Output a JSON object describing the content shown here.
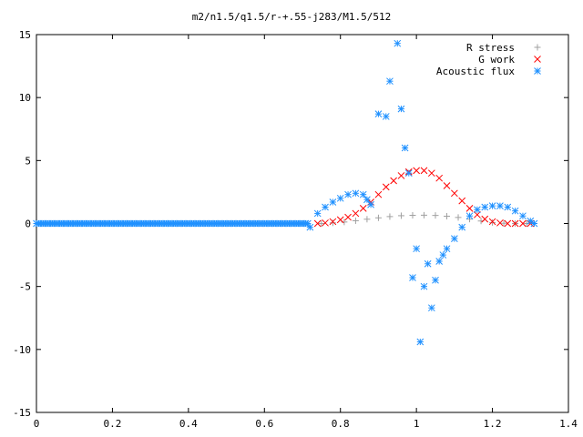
{
  "chart_data": {
    "type": "scatter",
    "title": "m2/n1.5/q1.5/r-+.55-j283/M1.5/512",
    "xlabel": "",
    "ylabel": "",
    "xlim": [
      0,
      1.4
    ],
    "ylim": [
      -15,
      15
    ],
    "x_ticks": [
      "0",
      "0.2",
      "0.4",
      "0.6",
      "0.8",
      "1",
      "1.2",
      "1.4"
    ],
    "y_ticks": [
      "15",
      "10",
      "5",
      "0",
      "-5",
      "-10",
      "-15"
    ],
    "grid": false,
    "legend_position": "top-right",
    "series": [
      {
        "name": "R stress",
        "marker": "plus",
        "color": "#a0a0a0",
        "x": [
          0.75,
          0.78,
          0.81,
          0.84,
          0.87,
          0.9,
          0.93,
          0.96,
          0.99,
          1.02,
          1.05,
          1.08,
          1.11,
          1.14,
          1.17,
          1.2,
          1.23,
          1.26,
          1.29,
          1.31
        ],
        "y": [
          0.0,
          0.05,
          0.12,
          0.22,
          0.34,
          0.45,
          0.55,
          0.62,
          0.65,
          0.66,
          0.64,
          0.58,
          0.48,
          0.35,
          0.2,
          0.08,
          0.02,
          0.0,
          0.0,
          0.0
        ]
      },
      {
        "name": "G work",
        "marker": "cross",
        "color": "#ff0000",
        "x": [
          0.74,
          0.76,
          0.78,
          0.8,
          0.82,
          0.84,
          0.86,
          0.88,
          0.9,
          0.92,
          0.94,
          0.96,
          0.98,
          1.0,
          1.02,
          1.04,
          1.06,
          1.08,
          1.1,
          1.12,
          1.14,
          1.16,
          1.18,
          1.2,
          1.22,
          1.24,
          1.26,
          1.28,
          1.3
        ],
        "y": [
          0.0,
          0.05,
          0.15,
          0.3,
          0.5,
          0.8,
          1.2,
          1.7,
          2.3,
          2.9,
          3.4,
          3.8,
          4.1,
          4.2,
          4.2,
          4.0,
          3.6,
          3.0,
          2.4,
          1.8,
          1.2,
          0.7,
          0.35,
          0.15,
          0.05,
          0.0,
          0.0,
          0.0,
          0.0
        ]
      },
      {
        "name": "Acoustic flux",
        "marker": "star",
        "color": "#1e90ff",
        "x": [
          0.72,
          0.74,
          0.76,
          0.78,
          0.8,
          0.82,
          0.84,
          0.86,
          0.87,
          0.88,
          0.9,
          0.92,
          0.93,
          0.95,
          0.96,
          0.97,
          0.98,
          0.99,
          1.0,
          1.01,
          1.02,
          1.03,
          1.04,
          1.05,
          1.06,
          1.07,
          1.08,
          1.1,
          1.12,
          1.14,
          1.16,
          1.18,
          1.2,
          1.22,
          1.24,
          1.26,
          1.28,
          1.3,
          1.31
        ],
        "y": [
          -0.3,
          0.8,
          1.3,
          1.7,
          2.0,
          2.3,
          2.4,
          2.3,
          1.9,
          1.5,
          8.7,
          8.5,
          11.3,
          14.3,
          9.1,
          6.0,
          4.0,
          -4.3,
          -2.0,
          -9.4,
          -5.0,
          -3.2,
          -6.7,
          -4.5,
          -3.0,
          -2.5,
          -2.0,
          -1.2,
          -0.3,
          0.6,
          1.1,
          1.3,
          1.4,
          1.4,
          1.3,
          1.0,
          0.6,
          0.2,
          0.0
        ]
      }
    ]
  }
}
